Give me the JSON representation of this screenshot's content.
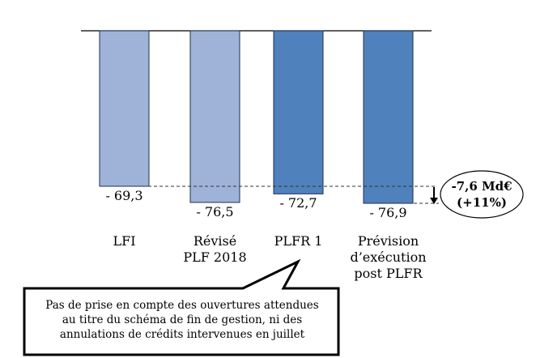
{
  "chart_data": {
    "type": "bar",
    "categories": [
      "LFI",
      "Révisé PLF 2018",
      "PLFR 1",
      "Prévision d’exécution post PLFR"
    ],
    "category_lines": [
      [
        "LFI"
      ],
      [
        "Révisé",
        "PLF 2018"
      ],
      [
        "PLFR 1"
      ],
      [
        "Prévision",
        "d’exécution",
        "post PLFR"
      ]
    ],
    "values": [
      -69.3,
      -76.5,
      -72.7,
      -76.9
    ],
    "value_labels": [
      "- 69,3",
      "- 76,5",
      "- 72,7",
      "- 76,9"
    ],
    "colors": [
      "#9fb3d9",
      "#9fb3d9",
      "#4f81bd",
      "#4f81bd"
    ],
    "title": "",
    "xlabel": "",
    "ylabel": "",
    "ylim": [
      -80,
      0
    ],
    "annotation": {
      "line1": "-7,6 Md€",
      "line2": "(+11%)"
    },
    "callout": {
      "lines": [
        "Pas de  prise en compte des ouvertures attendues",
        "au titre du schéma de fin de gestion, ni des",
        "annulations de crédits intervenues en juillet"
      ]
    }
  }
}
